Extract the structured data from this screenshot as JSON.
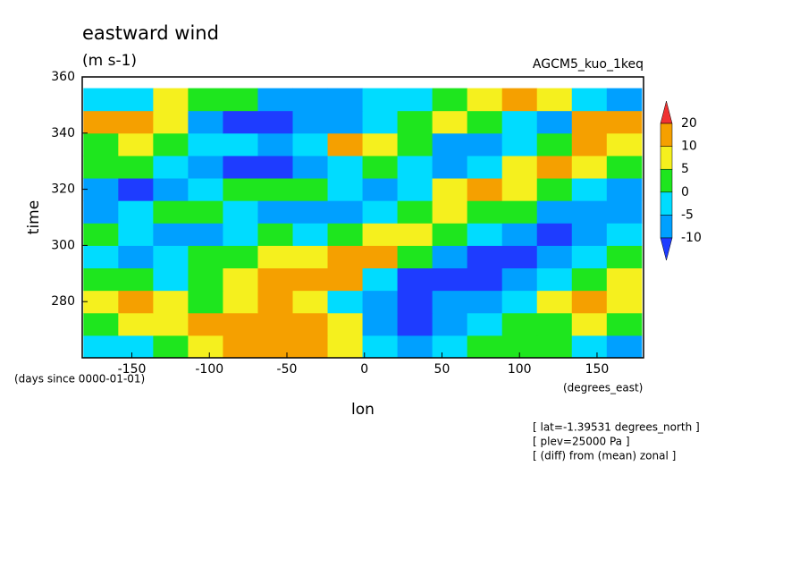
{
  "chart_data": {
    "type": "contour",
    "title": "eastward wind",
    "subtitle": "(m s-1)",
    "run_label": "AGCM5_kuo_1keq",
    "x_label": "lon",
    "x_units": "(degrees_east)",
    "y_label": "time",
    "y_units": "(days since 0000-01-01)",
    "annotations": [
      "[ lat=-1.39531 degrees_north ]",
      "[ plev=25000 Pa ]",
      "[ (diff) from (mean) zonal ]"
    ],
    "xlim": [
      -182,
      180
    ],
    "ylim": [
      260,
      360
    ],
    "xticks": [
      -150,
      -100,
      -50,
      0,
      50,
      100,
      150
    ],
    "yticks": [
      280,
      300,
      320,
      340,
      360
    ],
    "colorbar": {
      "levels": [
        -10,
        -5,
        0,
        5,
        10,
        20
      ],
      "colors": [
        "#1e3cff",
        "#00a0ff",
        "#00dcff",
        "#1ee61e",
        "#f5f01e",
        "#f5a000",
        "#f03232"
      ]
    },
    "field": {
      "x": [
        -170,
        -147.5,
        -125,
        -102.5,
        -80,
        -57.5,
        -35,
        -12.5,
        10,
        32.5,
        55,
        77.5,
        100,
        122.5,
        145,
        167.5
      ],
      "y": [
        264,
        272,
        280,
        288,
        296,
        304,
        312,
        320,
        328,
        336,
        344,
        352
      ],
      "values": [
        [
          -3,
          -5,
          0,
          6,
          10,
          12,
          15,
          8,
          -2,
          -8,
          -5,
          0,
          4,
          2,
          -3,
          -6
        ],
        [
          2,
          5,
          8,
          10,
          12,
          18,
          14,
          5,
          -6,
          -12,
          -8,
          -3,
          0,
          3,
          5,
          2
        ],
        [
          8,
          10,
          6,
          3,
          5,
          10,
          8,
          -3,
          -10,
          -14,
          -10,
          -6,
          -2,
          6,
          10,
          8
        ],
        [
          3,
          0,
          -4,
          2,
          8,
          12,
          14,
          10,
          -5,
          -12,
          -14,
          -11,
          -8,
          -3,
          2,
          5
        ],
        [
          -4,
          -6,
          -3,
          0,
          3,
          5,
          7,
          12,
          10,
          4,
          -6,
          -12,
          -13,
          -8,
          -2,
          0
        ],
        [
          0,
          -3,
          -7,
          -9,
          -4,
          0,
          -2,
          3,
          6,
          8,
          3,
          -5,
          -10,
          -12,
          -8,
          -3
        ],
        [
          -6,
          -4,
          0,
          3,
          -2,
          -6,
          -10,
          -8,
          -2,
          2,
          5,
          4,
          0,
          -6,
          -9,
          -8
        ],
        [
          -10,
          -12,
          -8,
          -3,
          0,
          4,
          2,
          -4,
          -8,
          -3,
          6,
          12,
          8,
          3,
          -2,
          -6
        ],
        [
          4,
          2,
          -3,
          -8,
          -11,
          -12,
          -6,
          -2,
          2,
          -4,
          -8,
          -3,
          5,
          10,
          6,
          2
        ],
        [
          3,
          6,
          3,
          -2,
          -5,
          -8,
          -4,
          15,
          8,
          0,
          -7,
          -9,
          -4,
          3,
          12,
          6
        ],
        [
          10,
          12,
          6,
          -10,
          -12,
          -14,
          -10,
          -6,
          -2,
          3,
          6,
          2,
          -4,
          -6,
          16,
          10
        ],
        [
          -4,
          -2,
          8,
          4,
          0,
          -6,
          -10,
          -8,
          -4,
          -2,
          4,
          8,
          10,
          6,
          -2,
          -6
        ]
      ]
    }
  }
}
